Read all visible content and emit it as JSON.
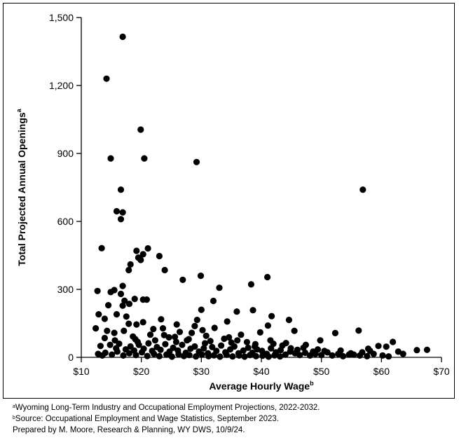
{
  "chart_data": {
    "type": "scatter",
    "title": "",
    "xlabel": "Average Hourly Wage",
    "xlabel_sup": "b",
    "ylabel": "Total Projected Annual Openings",
    "ylabel_sup": "a",
    "xlim": [
      10,
      70
    ],
    "ylim": [
      0,
      1500
    ],
    "x_ticks": [
      10,
      20,
      30,
      40,
      50,
      60,
      70
    ],
    "x_tick_labels": [
      "$10",
      "$20",
      "$30",
      "$40",
      "$50",
      "$60",
      "$70"
    ],
    "y_ticks": [
      0,
      300,
      600,
      900,
      1200,
      1500
    ],
    "y_tick_labels": [
      "0",
      "300",
      "600",
      "900",
      "1,200",
      "1,500"
    ],
    "grid": false,
    "legend": "none",
    "marker_color": "#000000",
    "points": [
      [
        16.9,
        1415
      ],
      [
        14.2,
        1230
      ],
      [
        19.9,
        1005
      ],
      [
        14.9,
        878
      ],
      [
        20.5,
        878
      ],
      [
        29.2,
        862
      ],
      [
        56.9,
        740
      ],
      [
        16.6,
        740
      ],
      [
        15.9,
        645
      ],
      [
        16.9,
        640
      ],
      [
        16.6,
        610
      ],
      [
        13.4,
        482
      ],
      [
        21.1,
        481
      ],
      [
        19.2,
        470
      ],
      [
        20.3,
        455
      ],
      [
        23.0,
        447
      ],
      [
        19.5,
        440
      ],
      [
        19.9,
        430
      ],
      [
        18.2,
        410
      ],
      [
        17.9,
        385
      ],
      [
        23.9,
        385
      ],
      [
        29.9,
        360
      ],
      [
        41.0,
        354
      ],
      [
        26.9,
        342
      ],
      [
        38.3,
        322
      ],
      [
        16.9,
        315
      ],
      [
        33.0,
        307
      ],
      [
        15.5,
        297
      ],
      [
        12.7,
        293
      ],
      [
        14.9,
        288
      ],
      [
        16.6,
        280
      ],
      [
        20.3,
        255
      ],
      [
        18.9,
        258
      ],
      [
        20.9,
        255
      ],
      [
        17.2,
        250
      ],
      [
        32.0,
        249
      ],
      [
        18.0,
        236
      ],
      [
        14.5,
        230
      ],
      [
        16.9,
        228
      ],
      [
        30.0,
        210
      ],
      [
        35.9,
        202
      ],
      [
        38.6,
        208
      ],
      [
        12.9,
        190
      ],
      [
        15.9,
        190
      ],
      [
        17.5,
        180
      ],
      [
        13.9,
        170
      ],
      [
        41.7,
        182
      ],
      [
        23.3,
        168
      ],
      [
        44.6,
        165
      ],
      [
        29.3,
        165
      ],
      [
        34.3,
        158
      ],
      [
        20.3,
        155
      ],
      [
        17.9,
        148
      ],
      [
        19.2,
        145
      ],
      [
        25.9,
        145
      ],
      [
        41.1,
        140
      ],
      [
        28.9,
        138
      ],
      [
        32.2,
        130
      ],
      [
        23.6,
        128
      ],
      [
        12.4,
        128
      ],
      [
        22.0,
        125
      ],
      [
        30.2,
        120
      ],
      [
        56.2,
        118
      ],
      [
        17.1,
        117
      ],
      [
        14.3,
        117
      ],
      [
        45.5,
        117
      ],
      [
        52.3,
        107
      ],
      [
        39.8,
        110
      ],
      [
        15.5,
        108
      ],
      [
        36.6,
        100
      ],
      [
        13.9,
        85
      ],
      [
        30.8,
        95
      ],
      [
        34.6,
        88
      ],
      [
        25.6,
        90
      ],
      [
        49.8,
        75
      ],
      [
        19.0,
        80
      ],
      [
        27.6,
        75
      ],
      [
        41.5,
        75
      ],
      [
        61.9,
        68
      ],
      [
        44.1,
        63
      ],
      [
        37.6,
        67
      ],
      [
        47.4,
        55
      ],
      [
        60.8,
        47
      ],
      [
        59.5,
        50
      ],
      [
        65.9,
        32
      ],
      [
        67.6,
        33
      ],
      [
        58.1,
        28
      ],
      [
        63.6,
        15
      ],
      [
        55.4,
        12
      ],
      [
        50.5,
        28
      ],
      [
        13.2,
        50
      ],
      [
        14.8,
        55
      ],
      [
        15.8,
        40
      ],
      [
        16.3,
        60
      ],
      [
        17.4,
        35
      ],
      [
        18.2,
        48
      ],
      [
        18.8,
        30
      ],
      [
        19.6,
        55
      ],
      [
        20.4,
        38
      ],
      [
        21.2,
        62
      ],
      [
        21.8,
        28
      ],
      [
        22.6,
        45
      ],
      [
        23.2,
        33
      ],
      [
        24.0,
        58
      ],
      [
        24.7,
        25
      ],
      [
        25.3,
        42
      ],
      [
        26.1,
        30
      ],
      [
        26.8,
        55
      ],
      [
        27.4,
        20
      ],
      [
        28.2,
        38
      ],
      [
        28.9,
        48
      ],
      [
        29.6,
        25
      ],
      [
        30.4,
        40
      ],
      [
        31.1,
        18
      ],
      [
        31.8,
        45
      ],
      [
        32.5,
        28
      ],
      [
        33.3,
        52
      ],
      [
        34.0,
        22
      ],
      [
        34.8,
        35
      ],
      [
        35.5,
        48
      ],
      [
        36.2,
        18
      ],
      [
        37.0,
        30
      ],
      [
        37.8,
        42
      ],
      [
        38.5,
        20
      ],
      [
        39.3,
        35
      ],
      [
        40.1,
        28
      ],
      [
        40.9,
        15
      ],
      [
        41.6,
        40
      ],
      [
        42.4,
        22
      ],
      [
        43.2,
        32
      ],
      [
        44.0,
        12
      ],
      [
        44.8,
        25
      ],
      [
        45.6,
        18
      ],
      [
        46.4,
        10
      ],
      [
        47.3,
        20
      ],
      [
        48.1,
        8
      ],
      [
        49.0,
        15
      ],
      [
        50.0,
        10
      ],
      [
        51.0,
        22
      ],
      [
        51.8,
        8
      ],
      [
        52.8,
        15
      ],
      [
        53.6,
        5
      ],
      [
        54.6,
        12
      ],
      [
        56.4,
        8
      ],
      [
        57.6,
        5
      ],
      [
        58.7,
        15
      ],
      [
        60.2,
        8
      ],
      [
        61.2,
        4
      ],
      [
        14.0,
        20
      ],
      [
        15.1,
        12
      ],
      [
        16.0,
        25
      ],
      [
        17.0,
        8
      ],
      [
        18.0,
        18
      ],
      [
        19.1,
        10
      ],
      [
        20.1,
        22
      ],
      [
        21.0,
        6
      ],
      [
        22.1,
        15
      ],
      [
        23.0,
        5
      ],
      [
        24.2,
        12
      ],
      [
        25.1,
        3
      ],
      [
        26.2,
        14
      ],
      [
        27.1,
        6
      ],
      [
        28.0,
        10
      ],
      [
        29.1,
        4
      ],
      [
        30.1,
        12
      ],
      [
        31.2,
        5
      ],
      [
        32.1,
        9
      ],
      [
        33.1,
        3
      ],
      [
        34.2,
        11
      ],
      [
        35.2,
        4
      ],
      [
        36.3,
        8
      ],
      [
        37.2,
        3
      ],
      [
        38.1,
        10
      ],
      [
        39.1,
        5
      ],
      [
        40.2,
        7
      ],
      [
        41.2,
        3
      ],
      [
        42.2,
        9
      ],
      [
        43.1,
        4
      ],
      [
        12.8,
        15
      ],
      [
        13.5,
        8
      ],
      [
        19.4,
        68
      ],
      [
        22.3,
        75
      ],
      [
        25.8,
        68
      ],
      [
        27.9,
        80
      ],
      [
        31.5,
        72
      ],
      [
        35.0,
        65
      ],
      [
        39.0,
        58
      ],
      [
        43.5,
        52
      ],
      [
        47.0,
        42
      ],
      [
        53.2,
        30
      ],
      [
        56.8,
        22
      ],
      [
        46.0,
        33
      ],
      [
        48.6,
        25
      ],
      [
        54.9,
        18
      ],
      [
        62.8,
        25
      ],
      [
        57.8,
        38
      ],
      [
        15.6,
        75
      ],
      [
        18.6,
        92
      ],
      [
        23.8,
        98
      ],
      [
        28.4,
        108
      ],
      [
        26.4,
        112
      ],
      [
        33.8,
        82
      ],
      [
        36.0,
        75
      ],
      [
        42.0,
        60
      ],
      [
        21.5,
        100
      ],
      [
        24.6,
        88
      ],
      [
        30.6,
        62
      ],
      [
        38.9,
        48
      ],
      [
        44.9,
        40
      ],
      [
        49.4,
        35
      ]
    ]
  },
  "footnotes": {
    "a": {
      "marker": "a",
      "text": "Wyoming Long-Term Industry and Occupational Employment Projections, 2022-2032."
    },
    "b": {
      "marker": "b",
      "text": "Source: Occupational Employment and Wage Statistics, September 2023."
    },
    "prepared": "Prepared by M. Moore, Research & Planning, WY DWS, 10/9/24."
  }
}
